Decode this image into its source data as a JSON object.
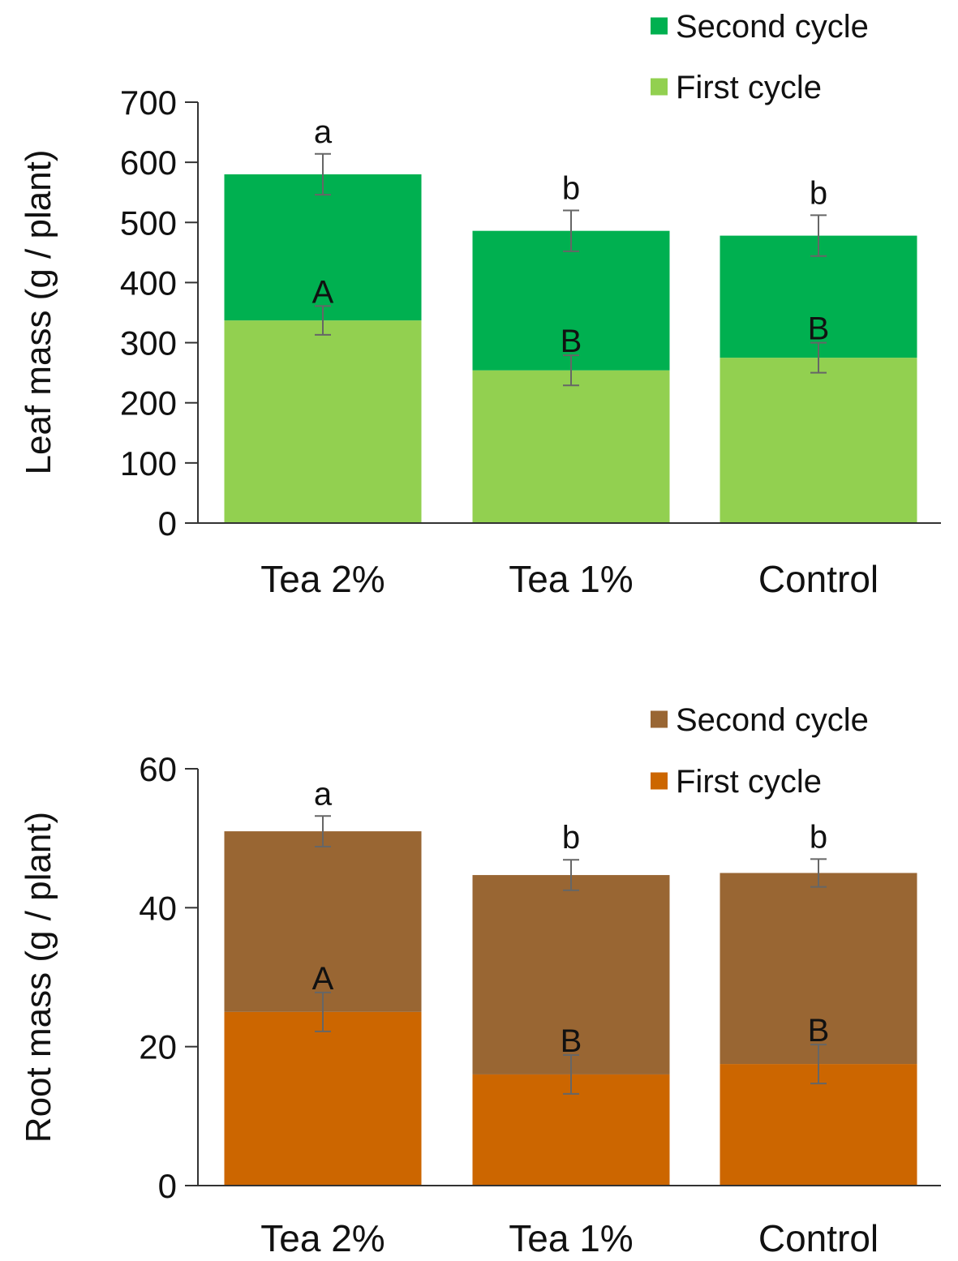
{
  "chart_data": [
    {
      "type": "bar",
      "stacked": true,
      "title": "",
      "xlabel": "",
      "ylabel": "Leaf mass (g / plant)",
      "ylim": [
        0,
        700
      ],
      "yticks": [
        0,
        100,
        200,
        300,
        400,
        500,
        600,
        700
      ],
      "categories": [
        "Tea 2%",
        "Tea 1%",
        "Control"
      ],
      "series": [
        {
          "name": "First cycle",
          "color": "#92d050",
          "values": [
            337,
            254,
            275
          ],
          "errors": [
            24,
            25,
            25
          ],
          "significance": [
            "A",
            "B",
            "B"
          ]
        },
        {
          "name": "Second cycle",
          "color": "#00b050",
          "values": [
            243,
            232,
            203
          ],
          "total_errors": [
            34,
            34,
            34
          ],
          "significance": [
            "a",
            "b",
            "b"
          ]
        }
      ],
      "legend": {
        "position": "top-right",
        "order": [
          "Second cycle",
          "First cycle"
        ]
      }
    },
    {
      "type": "bar",
      "stacked": true,
      "title": "",
      "xlabel": "",
      "ylabel": "Root mass (g / plant)",
      "ylim": [
        0,
        60
      ],
      "yticks": [
        0,
        20,
        40,
        60
      ],
      "categories": [
        "Tea 2%",
        "Tea 1%",
        "Control"
      ],
      "series": [
        {
          "name": "First cycle",
          "color": "#cc6600",
          "values": [
            25,
            16,
            17.5
          ],
          "errors": [
            2.8,
            2.8,
            2.8
          ],
          "significance": [
            "A",
            "B",
            "B"
          ]
        },
        {
          "name": "Second cycle",
          "color": "#996633",
          "values": [
            26,
            28.7,
            27.5
          ],
          "total_errors": [
            2.2,
            2.2,
            2.0
          ],
          "significance": [
            "a",
            "b",
            "b"
          ]
        }
      ],
      "legend": {
        "position": "top-right",
        "order": [
          "Second cycle",
          "First cycle"
        ]
      }
    }
  ]
}
